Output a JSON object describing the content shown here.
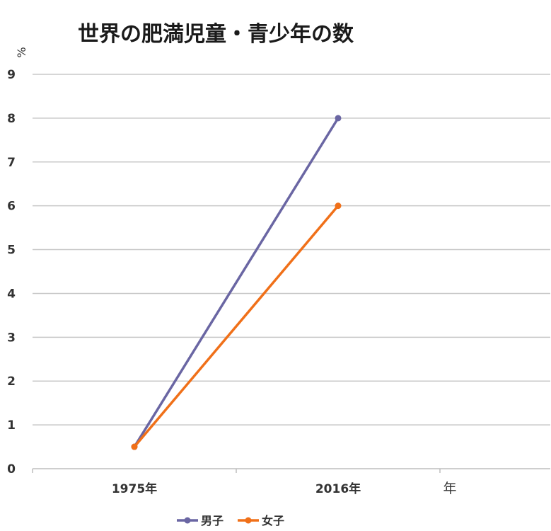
{
  "chart_data": {
    "type": "line",
    "title": "世界の肥満児童・青少年の数",
    "ylabel": "%",
    "xlabel": "年",
    "categories": [
      "1975年",
      "2016年"
    ],
    "ylim": [
      0,
      9
    ],
    "yticks": [
      "0",
      "1",
      "2",
      "3",
      "4",
      "5",
      "6",
      "7",
      "8",
      "9"
    ],
    "grid": true,
    "legend_position": "bottom",
    "series": [
      {
        "name": "男子",
        "values": [
          0.5,
          8.0
        ],
        "color": "#6a66a3"
      },
      {
        "name": "女子",
        "values": [
          0.5,
          6.0
        ],
        "color": "#f07019"
      }
    ]
  }
}
